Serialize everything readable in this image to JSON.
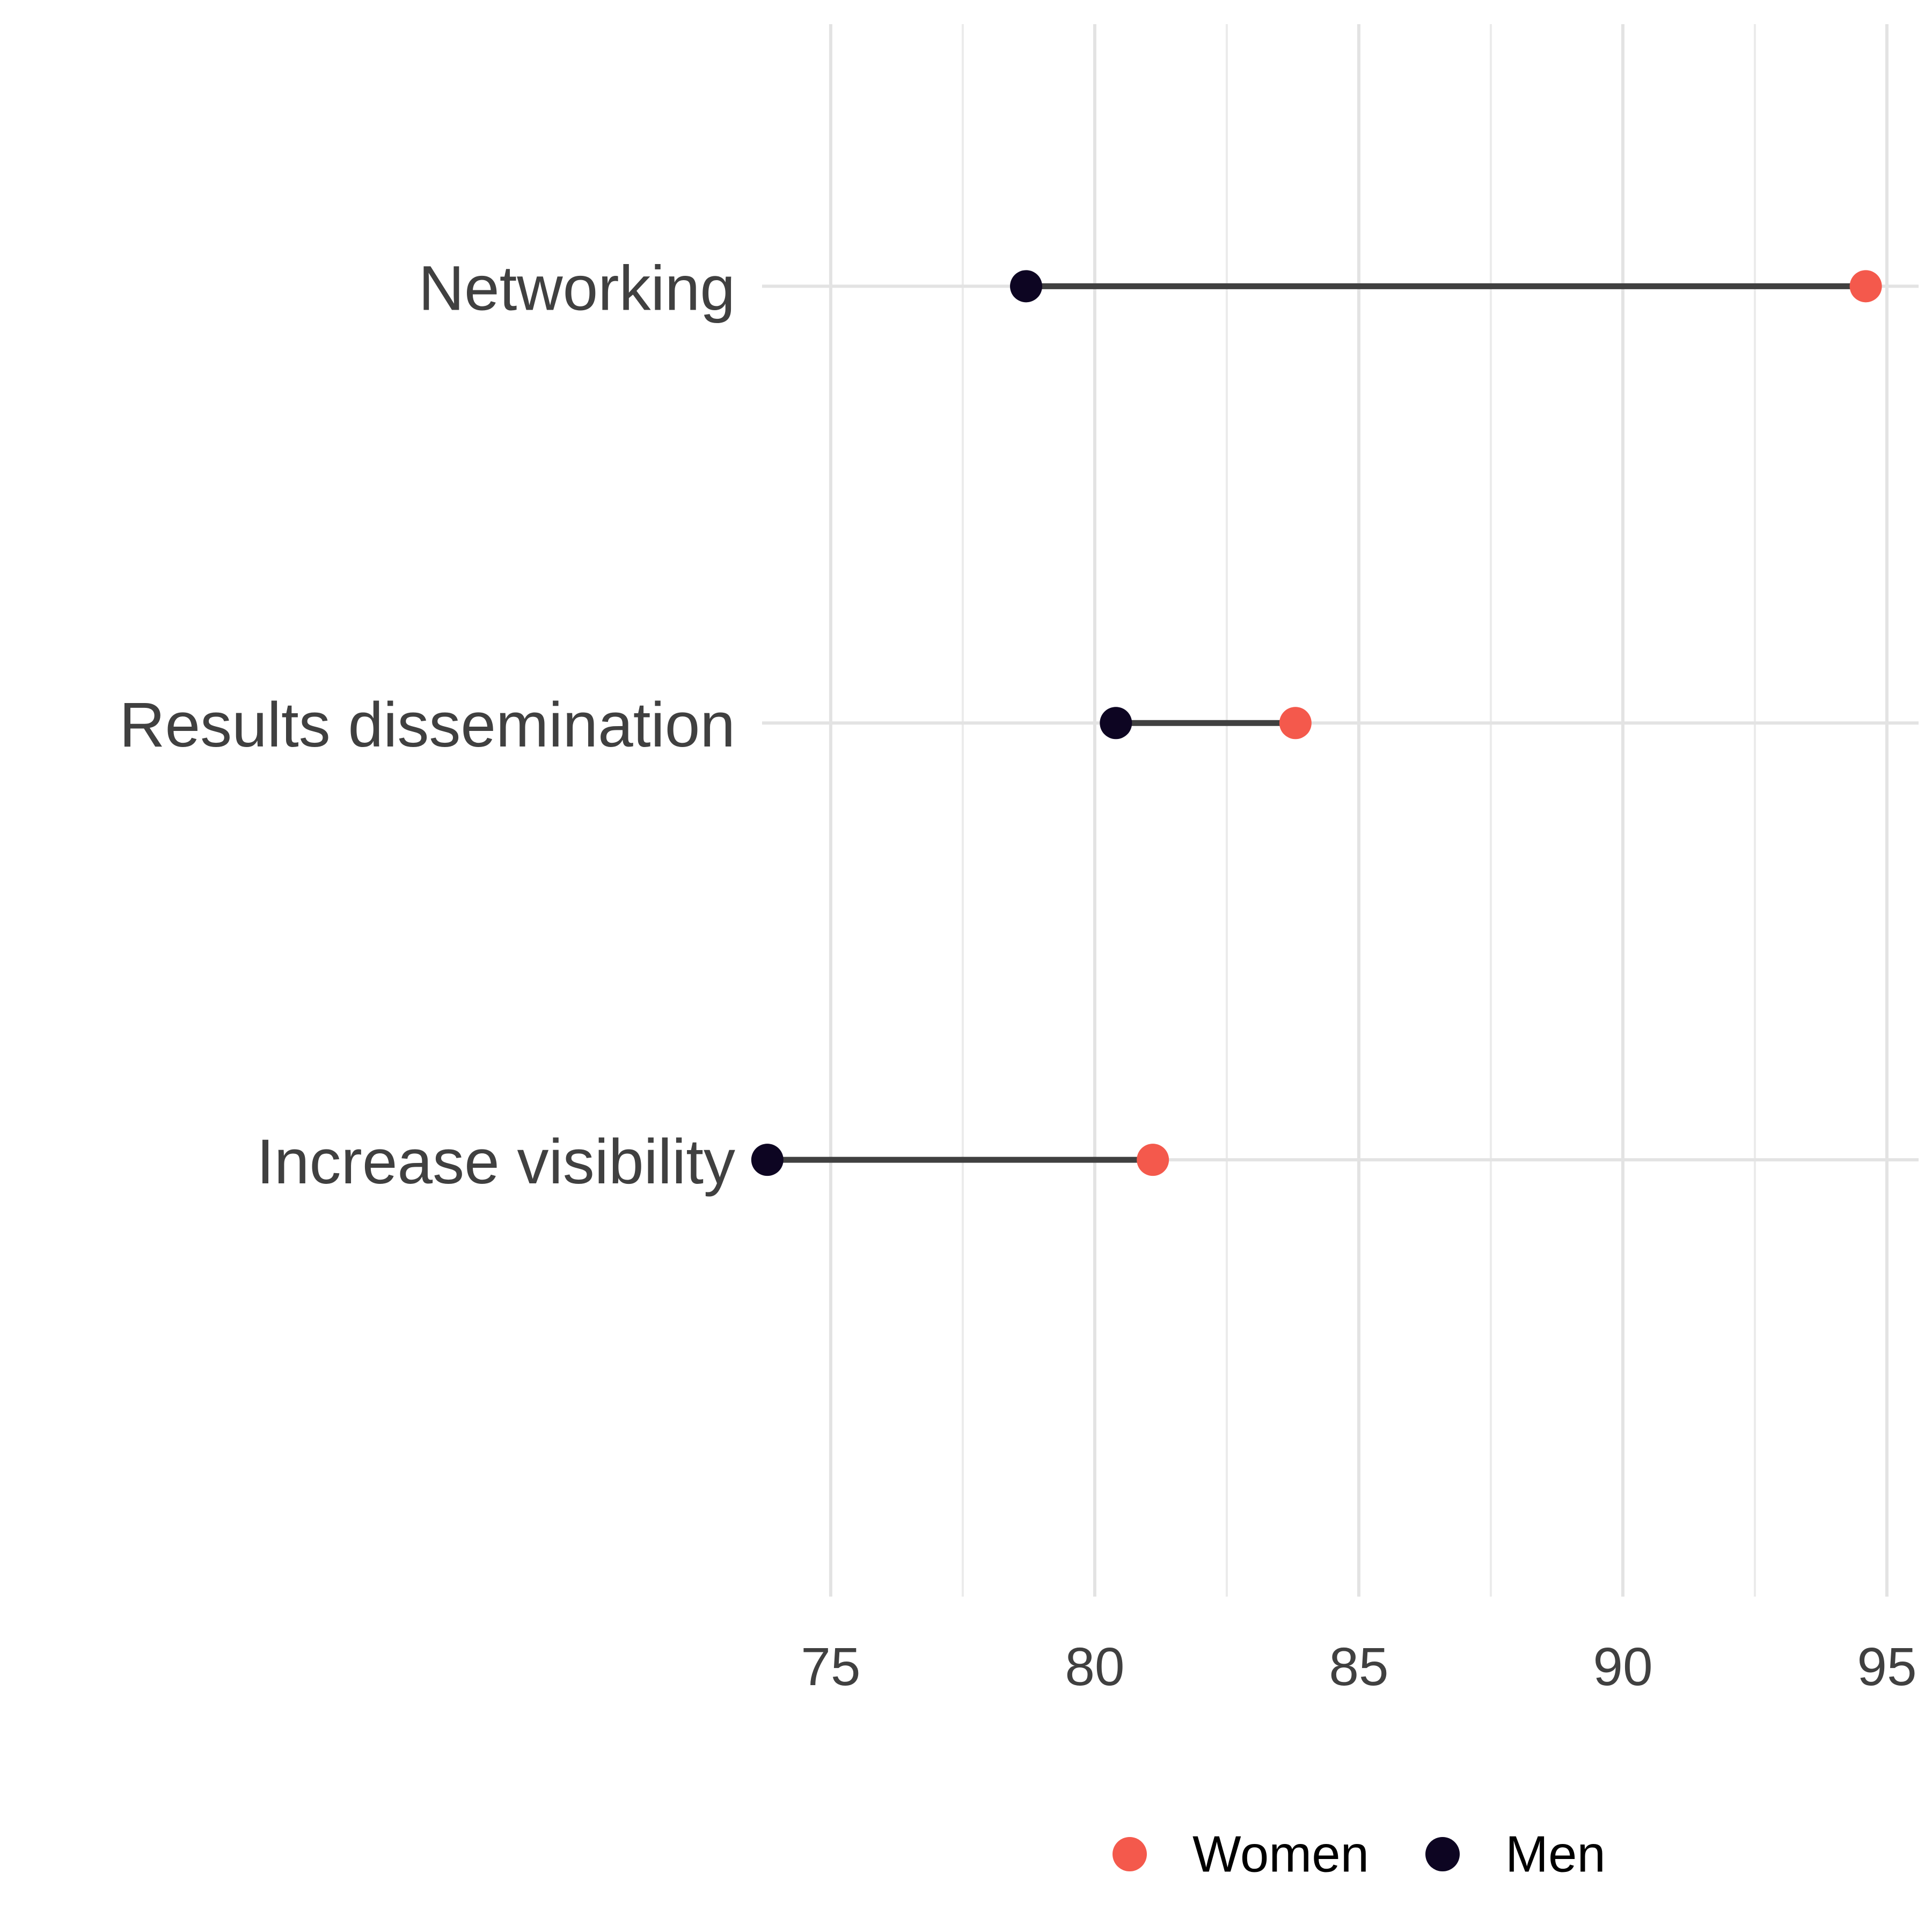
{
  "chart_data": {
    "type": "dumbbell",
    "categories": [
      "Networking",
      "Results dissemination",
      "Increase visibility"
    ],
    "series": [
      {
        "name": "Women",
        "color": "#f4594c",
        "values": [
          94.6,
          83.8,
          81.1
        ]
      },
      {
        "name": "Men",
        "color": "#0d0522",
        "values": [
          78.7,
          80.4,
          73.8
        ]
      }
    ],
    "xlim": [
      73.7,
      95.6
    ],
    "xticks": [
      "75",
      "80",
      "85",
      "90",
      "95"
    ],
    "grid": true,
    "legend_position": "bottom",
    "connector_color": "#404040"
  }
}
